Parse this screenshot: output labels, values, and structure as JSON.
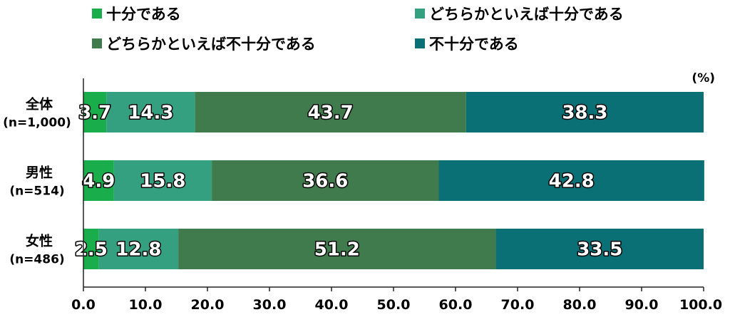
{
  "chart_data": {
    "type": "bar",
    "orientation": "horizontal",
    "stacked": true,
    "unit": "(%)",
    "categories": [
      {
        "name": "全体",
        "n": "(n=1,000)"
      },
      {
        "name": "男性",
        "n": "(n=514)"
      },
      {
        "name": "女性",
        "n": "(n=486)"
      }
    ],
    "series": [
      {
        "name": "十分である",
        "color": "#1aad4b",
        "values": [
          3.7,
          4.9,
          2.5
        ]
      },
      {
        "name": "どちらかといえば十分である",
        "color": "#35a07f",
        "values": [
          14.3,
          15.8,
          12.8
        ]
      },
      {
        "name": "どちらかといえば不十分である",
        "color": "#3f7b4c",
        "values": [
          43.7,
          36.6,
          51.2
        ]
      },
      {
        "name": "不十分である",
        "color": "#0a7076",
        "values": [
          38.3,
          42.8,
          33.5
        ]
      }
    ],
    "xlim": [
      0,
      100
    ],
    "xticks": [
      "0.0",
      "10.0",
      "20.0",
      "30.0",
      "40.0",
      "50.0",
      "60.0",
      "70.0",
      "80.0",
      "90.0",
      "100.0"
    ],
    "legend_position": "top",
    "grid": false
  }
}
